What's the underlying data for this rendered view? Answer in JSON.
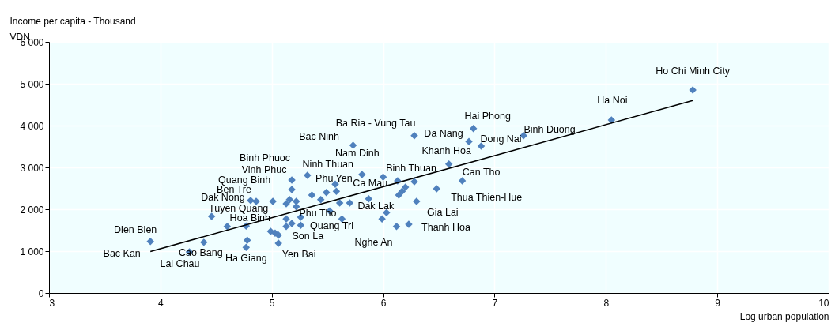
{
  "chart_data": {
    "type": "scatter",
    "ylabel": "Income per capita  - Thousand VDN",
    "xlabel": "Log urban population",
    "xlim": [
      3,
      10
    ],
    "xticks": [
      3,
      4,
      5,
      6,
      7,
      8,
      9,
      10
    ],
    "ylim": [
      0,
      6000
    ],
    "yticks": [
      0,
      {
        "value": 1000,
        "label": "1 000"
      },
      {
        "value": 2000,
        "label": "2 000"
      },
      {
        "value": 3000,
        "label": "3 000"
      },
      {
        "value": 4000,
        "label": "4 000"
      },
      {
        "value": 5000,
        "label": "5 000"
      },
      {
        "value": 6000,
        "label": "6 000"
      }
    ],
    "grid": true,
    "series": [
      {
        "type": "scatter",
        "marker": "diamond",
        "color": "#4f81bd",
        "x": [
          3.91,
          4.26,
          4.39,
          4.77,
          4.77,
          4.46,
          4.81,
          4.86,
          5.01,
          5.18,
          5.18,
          5.32,
          5.81,
          5.73,
          5.58,
          5.87,
          5.7,
          5.52,
          5.63,
          5.26,
          5.06,
          6.12,
          6.23,
          6.3,
          6.48,
          6.71,
          6.28,
          6.59,
          6.77,
          6.28,
          6.81,
          6.88,
          7.26,
          8.05,
          8.78,
          4.6,
          4.78,
          6.0,
          5.13,
          5.16,
          5.22,
          5.22,
          5.36,
          5.49,
          5.44,
          5.57,
          5.61,
          6.13,
          6.2,
          6.17,
          6.14,
          6.03,
          5.99,
          5.26,
          5.13,
          5.13,
          5.18,
          4.99,
          5.03,
          5.06
        ],
        "values": [
          1230,
          980,
          1210,
          1090,
          1600,
          1830,
          2210,
          2190,
          2190,
          2470,
          2700,
          2810,
          2830,
          3530,
          2430,
          2250,
          2150,
          1960,
          1770,
          1620,
          1190,
          1590,
          1640,
          2190,
          2490,
          2680,
          2660,
          3080,
          3620,
          3760,
          3930,
          3510,
          3760,
          4130,
          4850,
          1590,
          1260,
          2770,
          2130,
          2230,
          2190,
          2060,
          2340,
          2400,
          2230,
          2600,
          2150,
          2680,
          2530,
          2430,
          2340,
          1920,
          1770,
          1810,
          1770,
          1590,
          1660,
          1470,
          1430,
          1380
        ],
        "value_labels": [
          "Dien Bien",
          "Lai Chau",
          "Cao Bang",
          "Ha Giang",
          "Hoa Binh",
          "Tuyen Quang",
          "Dak Nong",
          "Ben Tre",
          "Quang Binh",
          "Vinh Phuc",
          "Binh Phuoc",
          "Ninh Thuan",
          "Nam Dinh",
          "Bac Ninh",
          "Phu Yen",
          "Ca Mau",
          "Dak Lak",
          "Phu Tho",
          "Quang Tri",
          "Son La",
          "Yen Bai",
          "Nghe An",
          "Thanh Hoa",
          "Gia Lai",
          "Thua Thien-Hue",
          "Can Tho",
          "Binh Thuan",
          "Khanh Hoa",
          "Da Nang",
          "Ba Ria - Vung Tau",
          "Hai Phong",
          "Dong Nai",
          "Binh Duong",
          "Ha Noi",
          "Ho Chi Minh City",
          null,
          null,
          null,
          null,
          null,
          null,
          null,
          null,
          null,
          null,
          null,
          null,
          null,
          null,
          null,
          null,
          null,
          null,
          null,
          null,
          null,
          null,
          null,
          null,
          null
        ]
      },
      {
        "type": "line",
        "color": "#000000",
        "x": [
          3.91,
          8.78
        ],
        "values": [
          990,
          4600
        ]
      }
    ],
    "annotations": [
      {
        "text": "Bac Kan",
        "x": 3.91,
        "y": 990
      }
    ]
  }
}
